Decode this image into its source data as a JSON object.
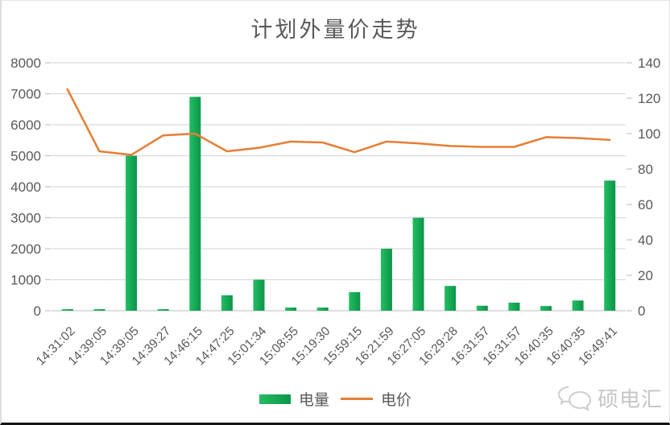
{
  "chart_data": {
    "type": "combo-bar-line",
    "title": "计划外量价走势",
    "categories": [
      "14:31:02",
      "14:39:05",
      "14:39:05",
      "14:39:27",
      "14:46:15",
      "14:47:25",
      "15:01:34",
      "15:08:55",
      "15:19:30",
      "15:59:15",
      "16:21:59",
      "16:27:05",
      "16:29:28",
      "16:31:57",
      "16:31:57",
      "16:40:35",
      "16:40:35",
      "16:49:41"
    ],
    "series": [
      {
        "name": "电量",
        "type": "bar",
        "axis": "left",
        "color_start": "#24bd63",
        "color_end": "#0c9549",
        "values": [
          50,
          50,
          5000,
          50,
          6900,
          500,
          1000,
          100,
          100,
          600,
          2000,
          3000,
          800,
          160,
          260,
          150,
          330,
          4200
        ]
      },
      {
        "name": "电价",
        "type": "line",
        "axis": "right",
        "color": "#e57e34",
        "values": [
          125,
          90,
          88,
          99,
          100,
          90,
          92,
          95.5,
          95,
          89.5,
          95.5,
          94.5,
          93,
          92.5,
          92.5,
          98,
          97.5,
          96.5
        ]
      }
    ],
    "left_axis": {
      "min": 0,
      "max": 8000,
      "step": 1000,
      "ticks": [
        "0",
        "1000",
        "2000",
        "3000",
        "4000",
        "5000",
        "6000",
        "7000",
        "8000"
      ]
    },
    "right_axis": {
      "min": 0,
      "max": 140,
      "step": 20,
      "ticks": [
        "0",
        "20",
        "40",
        "60",
        "80",
        "100",
        "120",
        "140"
      ]
    },
    "grid": "horizontal",
    "gridline_color": "#d9d9d9",
    "axis_label_color": "#595959",
    "legend_position": "bottom"
  },
  "watermark": {
    "brand_text": "硕电汇",
    "icon": "chat-bubbles-icon"
  }
}
